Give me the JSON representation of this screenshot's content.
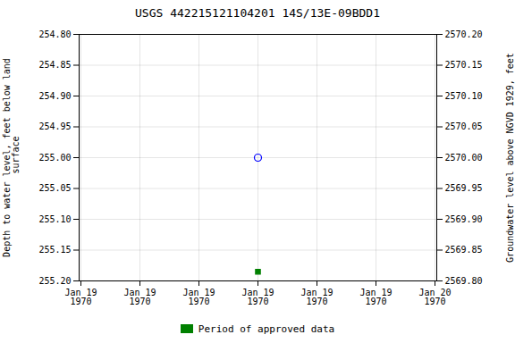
{
  "chart_data": {
    "type": "scatter",
    "title": "USGS 442215121104201 14S/13E-09BDD1",
    "ylabel": "Depth to water level, feet below land\n surface",
    "y2label": "Groundwater level above NGVD 1929, feet",
    "categories": [
      "Jan 19\n1970",
      "Jan 19\n1970",
      "Jan 19\n1970",
      "Jan 19\n1970",
      "Jan 19\n1970",
      "Jan 19\n1970",
      "Jan 20\n1970"
    ],
    "series": [
      {
        "color": "blue",
        "marker": "circle",
        "values": [
          null,
          null,
          null,
          255.0,
          null,
          null,
          null
        ]
      },
      {
        "name": "Period of approved data",
        "color": "#008000",
        "marker": "square",
        "values": [
          null,
          null,
          null,
          255.185,
          null,
          null,
          null
        ]
      }
    ],
    "ylim": [
      255.2,
      254.8
    ],
    "yticks": [
      {
        "value": 254.8,
        "label": "254.80"
      },
      {
        "value": 254.85,
        "label": "254.85"
      },
      {
        "value": 254.9,
        "label": "254.90"
      },
      {
        "value": 254.95,
        "label": "254.95"
      },
      {
        "value": 255.0,
        "label": "255.00"
      },
      {
        "value": 255.05,
        "label": "255.05"
      },
      {
        "value": 255.1,
        "label": "255.10"
      },
      {
        "value": 255.15,
        "label": "255.15"
      },
      {
        "value": 255.2,
        "label": "255.20"
      }
    ],
    "y2lim": [
      2569.8,
      2570.2
    ],
    "y2ticks": [
      {
        "value": 2569.8,
        "label": "2569.80"
      },
      {
        "value": 2569.85,
        "label": "2569.85"
      },
      {
        "value": 2569.9,
        "label": "2569.90"
      },
      {
        "value": 2569.95,
        "label": "2569.95"
      },
      {
        "value": 2570.0,
        "label": "2570.00"
      },
      {
        "value": 2570.05,
        "label": "2570.05"
      },
      {
        "value": 2570.1,
        "label": "2570.10"
      },
      {
        "value": 2570.15,
        "label": "2570.15"
      },
      {
        "value": 2570.2,
        "label": "2570.20"
      }
    ],
    "grid": true,
    "legend": "bottom"
  }
}
